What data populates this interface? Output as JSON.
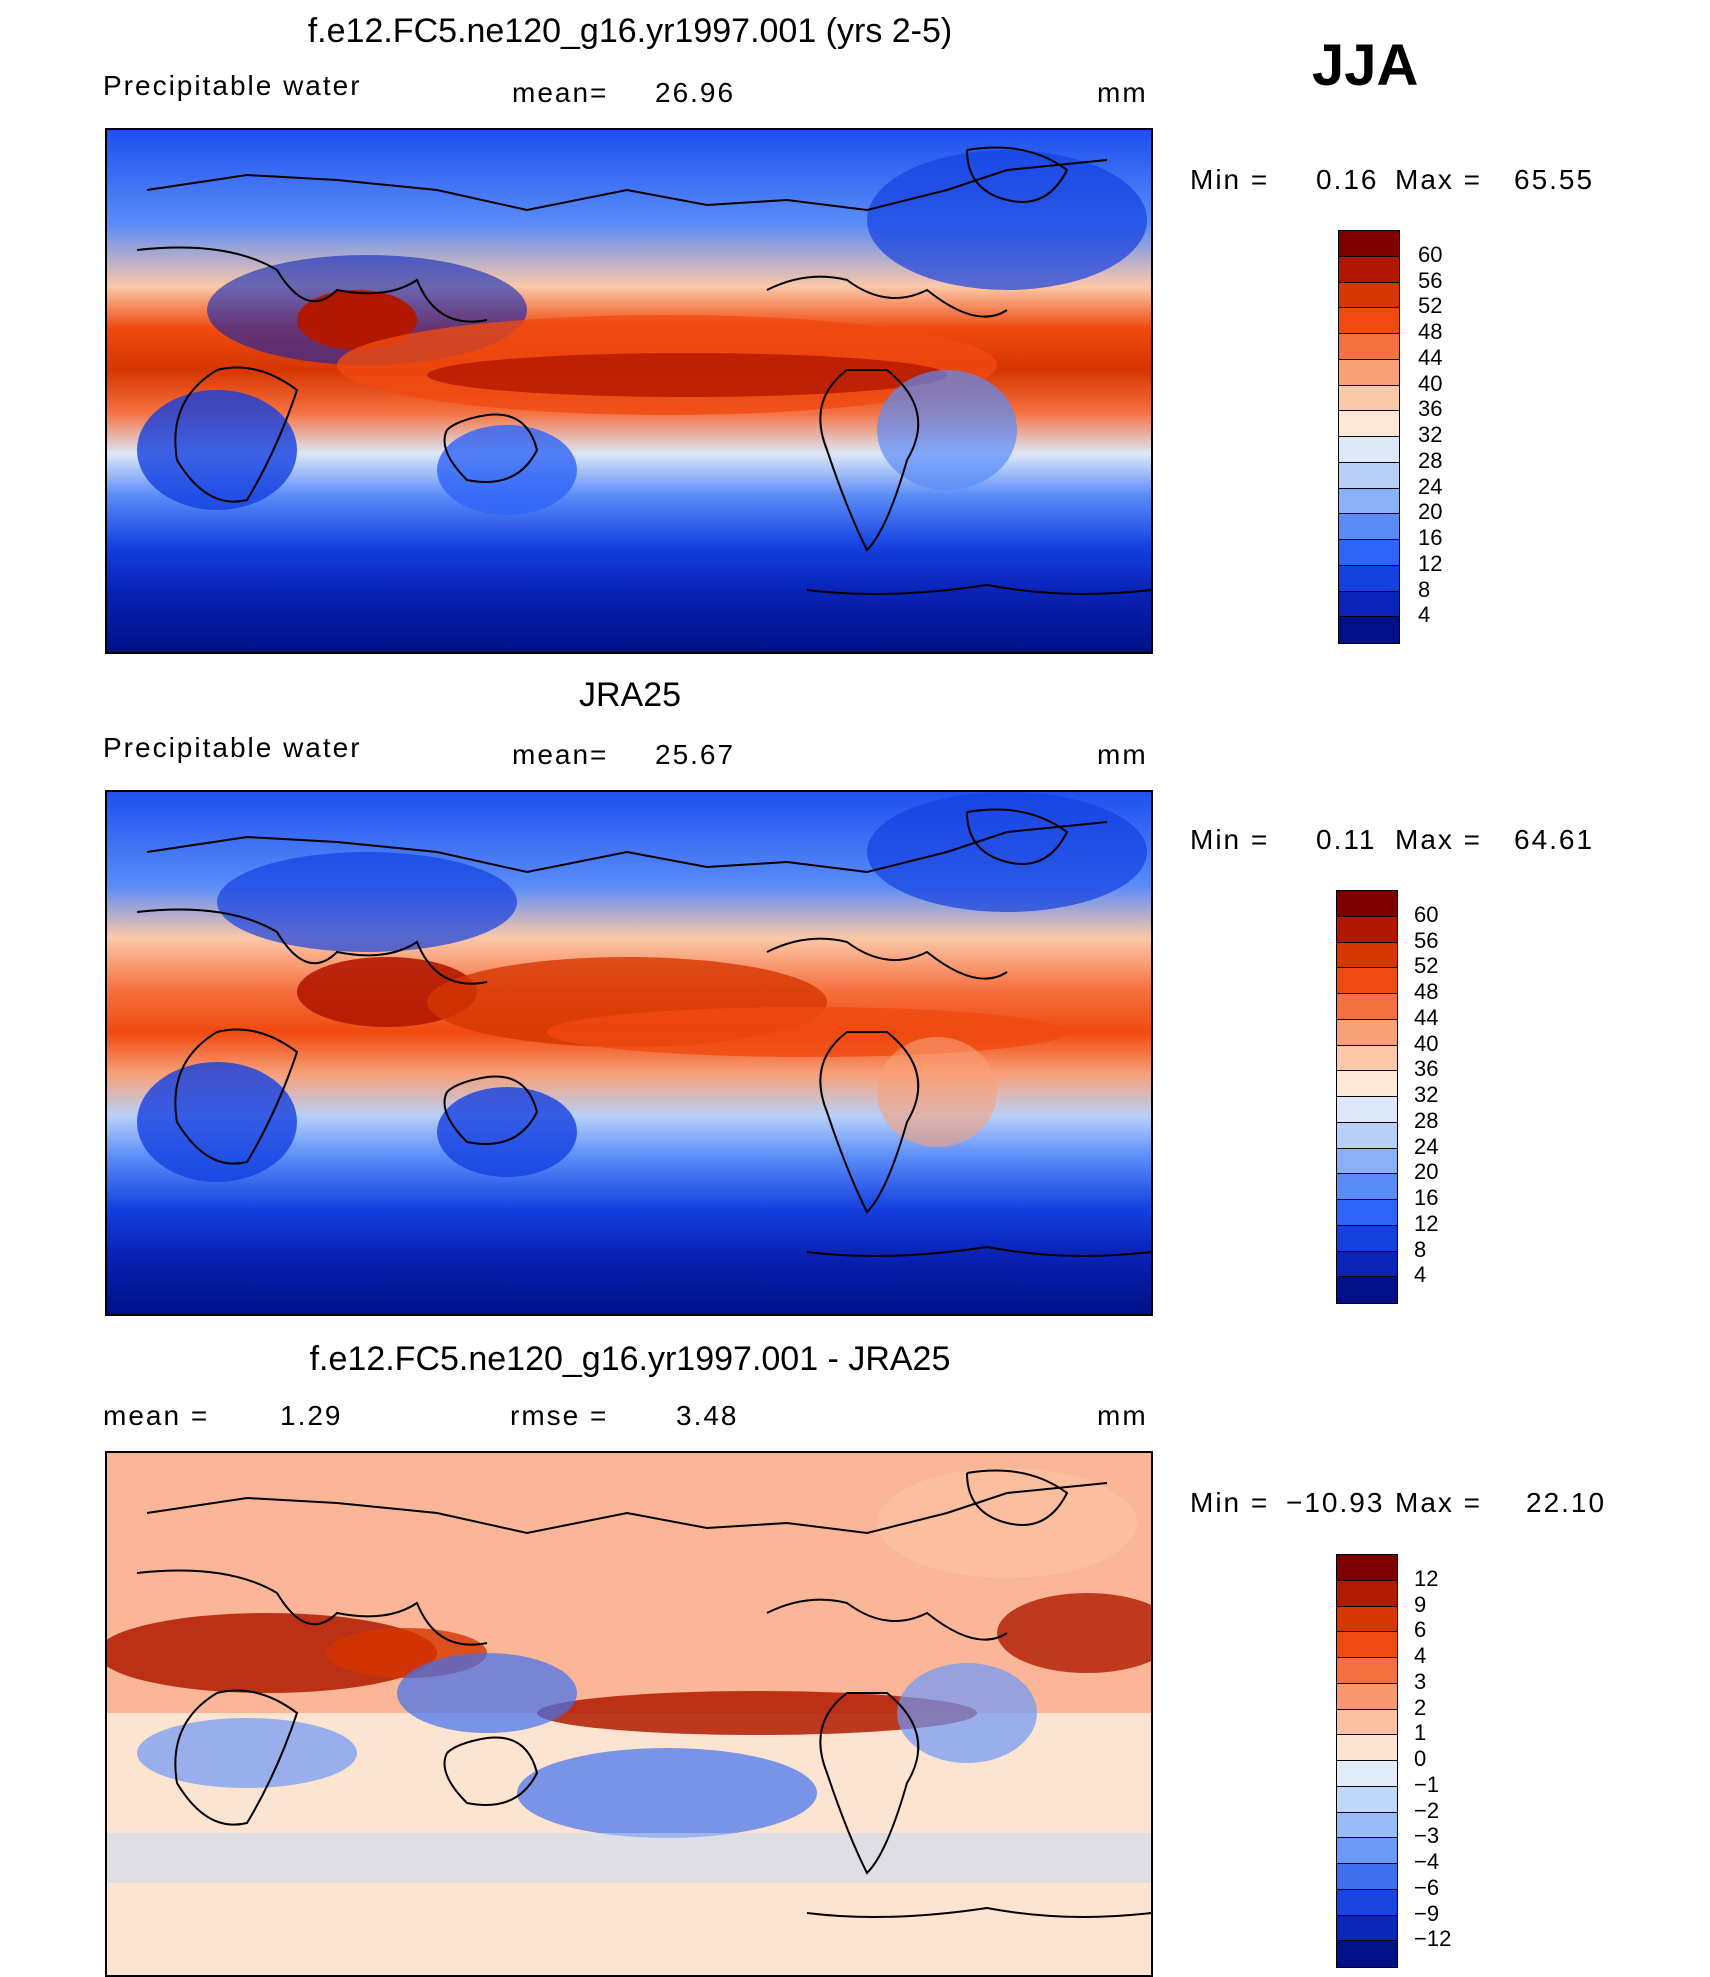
{
  "season": "JJA",
  "units": "mm",
  "panels": [
    {
      "id": "model",
      "title": "f.e12.FC5.ne120_g16.yr1997.001 (yrs 2-5)",
      "variable": "Precipitable water",
      "stat1_label": "mean=",
      "stat1_value": "26.96",
      "min_label": "Min =",
      "min_value": "0.16",
      "max_label": "Max =",
      "max_value": "65.55"
    },
    {
      "id": "obs",
      "title": "JRA25",
      "variable": "Precipitable water",
      "stat1_label": "mean=",
      "stat1_value": "25.67",
      "min_label": "Min =",
      "min_value": "0.11",
      "max_label": "Max =",
      "max_value": "64.61"
    },
    {
      "id": "diff",
      "title": "f.e12.FC5.ne120_g16.yr1997.001 - JRA25",
      "stat1_label": "mean =",
      "stat1_value": "1.29",
      "stat2_label": "rmse =",
      "stat2_value": "3.48",
      "min_label": "Min =",
      "min_value": "−10.93",
      "max_label": "Max =",
      "max_value": "22.10"
    }
  ],
  "colorbars": {
    "precip": {
      "levels": [
        "60",
        "56",
        "52",
        "48",
        "44",
        "40",
        "36",
        "32",
        "28",
        "24",
        "20",
        "16",
        "12",
        "8",
        "4"
      ],
      "colors": [
        "#7f0000",
        "#b21800",
        "#d63600",
        "#f04a10",
        "#f57040",
        "#f8a078",
        "#fbc8a8",
        "#fde8d8",
        "#dde8f8",
        "#b8d0f8",
        "#8ab0f8",
        "#5a8cf8",
        "#2e64f8",
        "#1440e0",
        "#0a24b8",
        "#001088"
      ]
    },
    "diff": {
      "levels": [
        "12",
        "9",
        "6",
        "4",
        "3",
        "2",
        "1",
        "0",
        "−1",
        "−2",
        "−3",
        "−4",
        "−6",
        "−9",
        "−12"
      ],
      "colors": [
        "#7f0000",
        "#b01a00",
        "#d63600",
        "#f04a10",
        "#f57040",
        "#f89870",
        "#fbc0a0",
        "#fde4d0",
        "#e0ecf8",
        "#c0d8f8",
        "#98bcf8",
        "#6c98f8",
        "#4070f0",
        "#1a44e0",
        "#0a28b8",
        "#001088"
      ]
    }
  },
  "map_colors": {
    "deep_blue": "#001a8c",
    "blue": "#1e50f0",
    "light_blue": "#8ab0f8",
    "cream": "#fde8d8",
    "orange": "#f05a1e",
    "red": "#c42400",
    "dark_red": "#8a0a00",
    "diff_base": "#fde4d0"
  }
}
